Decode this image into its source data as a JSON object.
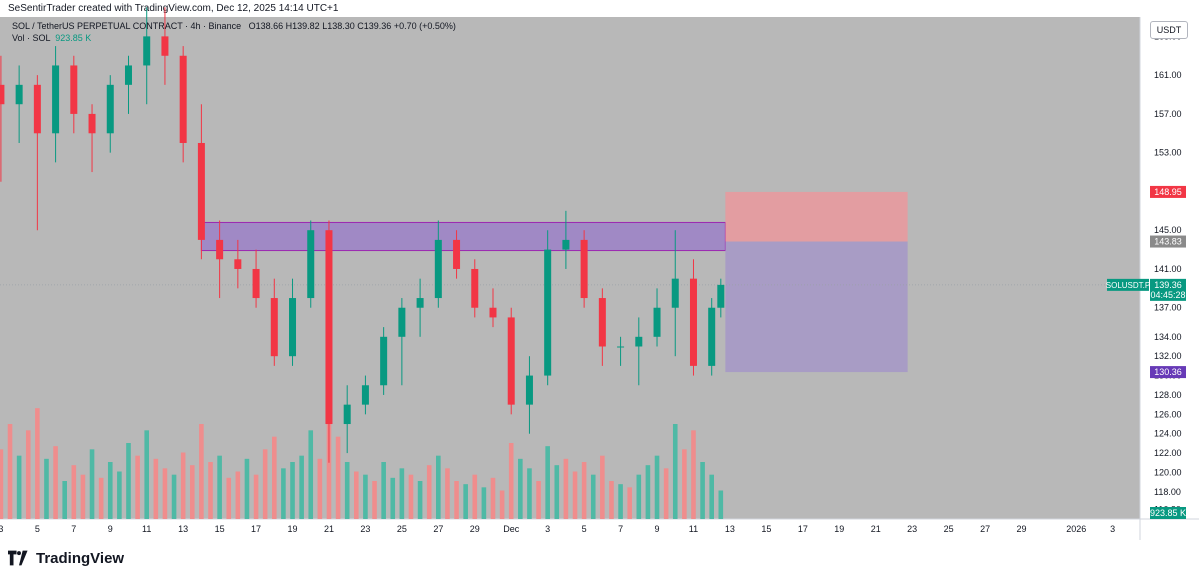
{
  "header": {
    "credit": "SeSentirTrader created with TradingView.com, Dec 12, 2025 14:14 UTC+1"
  },
  "legend": {
    "symbol_line": "SOL / TetherUS PERPETUAL CONTRACT · 4h · Binance",
    "open_label": "O",
    "open": "138.66",
    "high_label": "H",
    "high": "139.82",
    "low_label": "L",
    "low": "138.30",
    "close_label": "C",
    "close": "139.36",
    "change": "+0.70 (+0.50%)",
    "volume_label": "Vol · SOL",
    "volume_value": "923.85 K"
  },
  "currency_button": "USDT",
  "footer": {
    "brand": "TradingView"
  },
  "colors": {
    "background": "#b8b8b8",
    "up": "#089981",
    "down": "#f23645",
    "up_volume": "#4fb9a5",
    "down_volume": "#ef8d8d",
    "zone": "#9b80c7",
    "zone_border": "#9c27b0",
    "stop_box": "#e89a9f",
    "target_box": "#a699c7"
  },
  "chart_data": {
    "type": "candlestick",
    "y_axis": {
      "ticks": [
        "165.00",
        "161.00",
        "157.00",
        "153.00",
        "145.00",
        "141.00",
        "137.00",
        "134.00",
        "132.00",
        "130.00",
        "128.00",
        "126.00",
        "124.00",
        "122.00",
        "120.00",
        "118.00",
        "116.20"
      ],
      "tick_values": [
        165,
        161,
        157,
        153,
        145,
        141,
        137,
        134,
        132,
        130,
        128,
        126,
        124,
        122,
        120,
        118,
        116.2
      ],
      "range": [
        115.2,
        167
      ]
    },
    "x_axis": {
      "ticks": [
        "3",
        "5",
        "7",
        "9",
        "11",
        "13",
        "15",
        "17",
        "19",
        "21",
        "23",
        "25",
        "27",
        "29",
        "Dec",
        "3",
        "5",
        "7",
        "9",
        "11",
        "13",
        "15",
        "17",
        "19",
        "21",
        "23",
        "25",
        "27",
        "29",
        "2026",
        "3"
      ],
      "tick_days": [
        3,
        5,
        7,
        9,
        11,
        13,
        15,
        17,
        19,
        21,
        23,
        25,
        27,
        29,
        31,
        33,
        35,
        37,
        39,
        41,
        43,
        45,
        47,
        49,
        51,
        53,
        55,
        57,
        59,
        62,
        64
      ],
      "range_days": [
        2.95,
        65.5
      ]
    },
    "price_labels": {
      "stop": "148.95",
      "entry": "143.83",
      "current_symbol": "SOLUSDT.P",
      "current": "139.36",
      "countdown": "04:45:28",
      "target": "130.36",
      "volume": "923.85 K"
    },
    "levels": {
      "stop": 148.95,
      "entry": 143.83,
      "current": 139.36,
      "target": 130.36
    },
    "zone": {
      "day_start": 14.0,
      "day_end": 42.75,
      "low": 142.9,
      "high": 145.8
    },
    "position": {
      "day_start": 42.75,
      "day_end": 52.75
    },
    "volume_max": 180,
    "series": [
      {
        "name": "price",
        "points": [
          {
            "d": 3.0,
            "o": 160,
            "h": 163,
            "l": 150,
            "c": 158
          },
          {
            "d": 4.0,
            "o": 158,
            "h": 162,
            "l": 154,
            "c": 160
          },
          {
            "d": 5.0,
            "o": 160,
            "h": 161,
            "l": 145,
            "c": 155
          },
          {
            "d": 6.0,
            "o": 155,
            "h": 164,
            "l": 152,
            "c": 162
          },
          {
            "d": 7.0,
            "o": 162,
            "h": 163,
            "l": 155,
            "c": 157
          },
          {
            "d": 8.0,
            "o": 157,
            "h": 158,
            "l": 151,
            "c": 155
          },
          {
            "d": 9.0,
            "o": 155,
            "h": 161,
            "l": 153,
            "c": 160
          },
          {
            "d": 10.0,
            "o": 160,
            "h": 163,
            "l": 157,
            "c": 162
          },
          {
            "d": 11.0,
            "o": 162,
            "h": 168,
            "l": 158,
            "c": 165
          },
          {
            "d": 12.0,
            "o": 165,
            "h": 168,
            "l": 160,
            "c": 163
          },
          {
            "d": 13.0,
            "o": 163,
            "h": 164,
            "l": 152,
            "c": 154
          },
          {
            "d": 14.0,
            "o": 154,
            "h": 158,
            "l": 142,
            "c": 144
          },
          {
            "d": 15.0,
            "o": 144,
            "h": 146,
            "l": 138,
            "c": 142
          },
          {
            "d": 16.0,
            "o": 142,
            "h": 144,
            "l": 139,
            "c": 141
          },
          {
            "d": 17.0,
            "o": 141,
            "h": 143,
            "l": 137,
            "c": 138
          },
          {
            "d": 18.0,
            "o": 138,
            "h": 140,
            "l": 131,
            "c": 132
          },
          {
            "d": 19.0,
            "o": 132,
            "h": 140,
            "l": 131,
            "c": 138
          },
          {
            "d": 20.0,
            "o": 138,
            "h": 146,
            "l": 137,
            "c": 145
          },
          {
            "d": 21.0,
            "o": 145,
            "h": 146,
            "l": 121,
            "c": 125
          },
          {
            "d": 22.0,
            "o": 125,
            "h": 129,
            "l": 122,
            "c": 127
          },
          {
            "d": 23.0,
            "o": 127,
            "h": 130,
            "l": 126,
            "c": 129
          },
          {
            "d": 24.0,
            "o": 129,
            "h": 135,
            "l": 128,
            "c": 134
          },
          {
            "d": 25.0,
            "o": 134,
            "h": 138,
            "l": 129,
            "c": 137
          },
          {
            "d": 26.0,
            "o": 137,
            "h": 140,
            "l": 134,
            "c": 138
          },
          {
            "d": 27.0,
            "o": 138,
            "h": 146,
            "l": 137,
            "c": 144
          },
          {
            "d": 28.0,
            "o": 144,
            "h": 145,
            "l": 140,
            "c": 141
          },
          {
            "d": 29.0,
            "o": 141,
            "h": 142,
            "l": 136,
            "c": 137
          },
          {
            "d": 30.0,
            "o": 137,
            "h": 139,
            "l": 135,
            "c": 136
          },
          {
            "d": 31.0,
            "o": 136,
            "h": 137,
            "l": 126,
            "c": 127
          },
          {
            "d": 32.0,
            "o": 127,
            "h": 132,
            "l": 124,
            "c": 130
          },
          {
            "d": 33.0,
            "o": 130,
            "h": 145,
            "l": 129,
            "c": 143
          },
          {
            "d": 34.0,
            "o": 143,
            "h": 147,
            "l": 141,
            "c": 144
          },
          {
            "d": 35.0,
            "o": 144,
            "h": 145,
            "l": 137,
            "c": 138
          },
          {
            "d": 36.0,
            "o": 138,
            "h": 139,
            "l": 131,
            "c": 133
          },
          {
            "d": 37.0,
            "o": 133,
            "h": 134,
            "l": 131,
            "c": 133
          },
          {
            "d": 38.0,
            "o": 133,
            "h": 136,
            "l": 129,
            "c": 134
          },
          {
            "d": 39.0,
            "o": 134,
            "h": 139,
            "l": 133,
            "c": 137
          },
          {
            "d": 40.0,
            "o": 137,
            "h": 145,
            "l": 132,
            "c": 140
          },
          {
            "d": 41.0,
            "o": 140,
            "h": 142,
            "l": 130,
            "c": 131
          },
          {
            "d": 42.0,
            "o": 131,
            "h": 138,
            "l": 130,
            "c": 137
          },
          {
            "d": 42.5,
            "o": 137,
            "h": 140,
            "l": 136,
            "c": 139.36
          }
        ]
      },
      {
        "name": "volume",
        "points": [
          {
            "d": 3.0,
            "v": 110,
            "u": false
          },
          {
            "d": 3.5,
            "v": 150,
            "u": false
          },
          {
            "d": 4.0,
            "v": 100,
            "u": true
          },
          {
            "d": 4.5,
            "v": 140,
            "u": false
          },
          {
            "d": 5.0,
            "v": 175,
            "u": false
          },
          {
            "d": 5.5,
            "v": 95,
            "u": true
          },
          {
            "d": 6.0,
            "v": 115,
            "u": false
          },
          {
            "d": 6.5,
            "v": 60,
            "u": true
          },
          {
            "d": 7.0,
            "v": 85,
            "u": false
          },
          {
            "d": 7.5,
            "v": 70,
            "u": false
          },
          {
            "d": 8.0,
            "v": 110,
            "u": true
          },
          {
            "d": 8.5,
            "v": 65,
            "u": false
          },
          {
            "d": 9.0,
            "v": 90,
            "u": true
          },
          {
            "d": 9.5,
            "v": 75,
            "u": true
          },
          {
            "d": 10.0,
            "v": 120,
            "u": true
          },
          {
            "d": 10.5,
            "v": 100,
            "u": false
          },
          {
            "d": 11.0,
            "v": 140,
            "u": true
          },
          {
            "d": 11.5,
            "v": 95,
            "u": false
          },
          {
            "d": 12.0,
            "v": 80,
            "u": false
          },
          {
            "d": 12.5,
            "v": 70,
            "u": true
          },
          {
            "d": 13.0,
            "v": 105,
            "u": false
          },
          {
            "d": 13.5,
            "v": 85,
            "u": false
          },
          {
            "d": 14.0,
            "v": 150,
            "u": false
          },
          {
            "d": 14.5,
            "v": 90,
            "u": false
          },
          {
            "d": 15.0,
            "v": 100,
            "u": true
          },
          {
            "d": 15.5,
            "v": 65,
            "u": false
          },
          {
            "d": 16.0,
            "v": 75,
            "u": false
          },
          {
            "d": 16.5,
            "v": 95,
            "u": true
          },
          {
            "d": 17.0,
            "v": 70,
            "u": false
          },
          {
            "d": 17.5,
            "v": 110,
            "u": false
          },
          {
            "d": 18.0,
            "v": 130,
            "u": false
          },
          {
            "d": 18.5,
            "v": 80,
            "u": true
          },
          {
            "d": 19.0,
            "v": 90,
            "u": true
          },
          {
            "d": 19.5,
            "v": 100,
            "u": true
          },
          {
            "d": 20.0,
            "v": 140,
            "u": true
          },
          {
            "d": 20.5,
            "v": 95,
            "u": false
          },
          {
            "d": 21.0,
            "v": 170,
            "u": false
          },
          {
            "d": 21.5,
            "v": 130,
            "u": false
          },
          {
            "d": 22.0,
            "v": 90,
            "u": true
          },
          {
            "d": 22.5,
            "v": 75,
            "u": false
          },
          {
            "d": 23.0,
            "v": 70,
            "u": true
          },
          {
            "d": 23.5,
            "v": 60,
            "u": false
          },
          {
            "d": 24.0,
            "v": 90,
            "u": true
          },
          {
            "d": 24.5,
            "v": 65,
            "u": true
          },
          {
            "d": 25.0,
            "v": 80,
            "u": true
          },
          {
            "d": 25.5,
            "v": 70,
            "u": false
          },
          {
            "d": 26.0,
            "v": 60,
            "u": true
          },
          {
            "d": 26.5,
            "v": 85,
            "u": false
          },
          {
            "d": 27.0,
            "v": 100,
            "u": true
          },
          {
            "d": 27.5,
            "v": 80,
            "u": false
          },
          {
            "d": 28.0,
            "v": 60,
            "u": false
          },
          {
            "d": 28.5,
            "v": 55,
            "u": true
          },
          {
            "d": 29.0,
            "v": 70,
            "u": false
          },
          {
            "d": 29.5,
            "v": 50,
            "u": true
          },
          {
            "d": 30.0,
            "v": 65,
            "u": false
          },
          {
            "d": 30.5,
            "v": 45,
            "u": false
          },
          {
            "d": 31.0,
            "v": 120,
            "u": false
          },
          {
            "d": 31.5,
            "v": 95,
            "u": true
          },
          {
            "d": 32.0,
            "v": 80,
            "u": true
          },
          {
            "d": 32.5,
            "v": 60,
            "u": false
          },
          {
            "d": 33.0,
            "v": 115,
            "u": true
          },
          {
            "d": 33.5,
            "v": 85,
            "u": true
          },
          {
            "d": 34.0,
            "v": 95,
            "u": false
          },
          {
            "d": 34.5,
            "v": 75,
            "u": false
          },
          {
            "d": 35.0,
            "v": 90,
            "u": false
          },
          {
            "d": 35.5,
            "v": 70,
            "u": true
          },
          {
            "d": 36.0,
            "v": 100,
            "u": false
          },
          {
            "d": 36.5,
            "v": 60,
            "u": false
          },
          {
            "d": 37.0,
            "v": 55,
            "u": true
          },
          {
            "d": 37.5,
            "v": 50,
            "u": false
          },
          {
            "d": 38.0,
            "v": 70,
            "u": true
          },
          {
            "d": 38.5,
            "v": 85,
            "u": true
          },
          {
            "d": 39.0,
            "v": 100,
            "u": true
          },
          {
            "d": 39.5,
            "v": 80,
            "u": false
          },
          {
            "d": 40.0,
            "v": 150,
            "u": true
          },
          {
            "d": 40.5,
            "v": 110,
            "u": false
          },
          {
            "d": 41.0,
            "v": 140,
            "u": false
          },
          {
            "d": 41.5,
            "v": 90,
            "u": true
          },
          {
            "d": 42.0,
            "v": 70,
            "u": true
          },
          {
            "d": 42.5,
            "v": 45,
            "u": true
          }
        ]
      }
    ]
  }
}
